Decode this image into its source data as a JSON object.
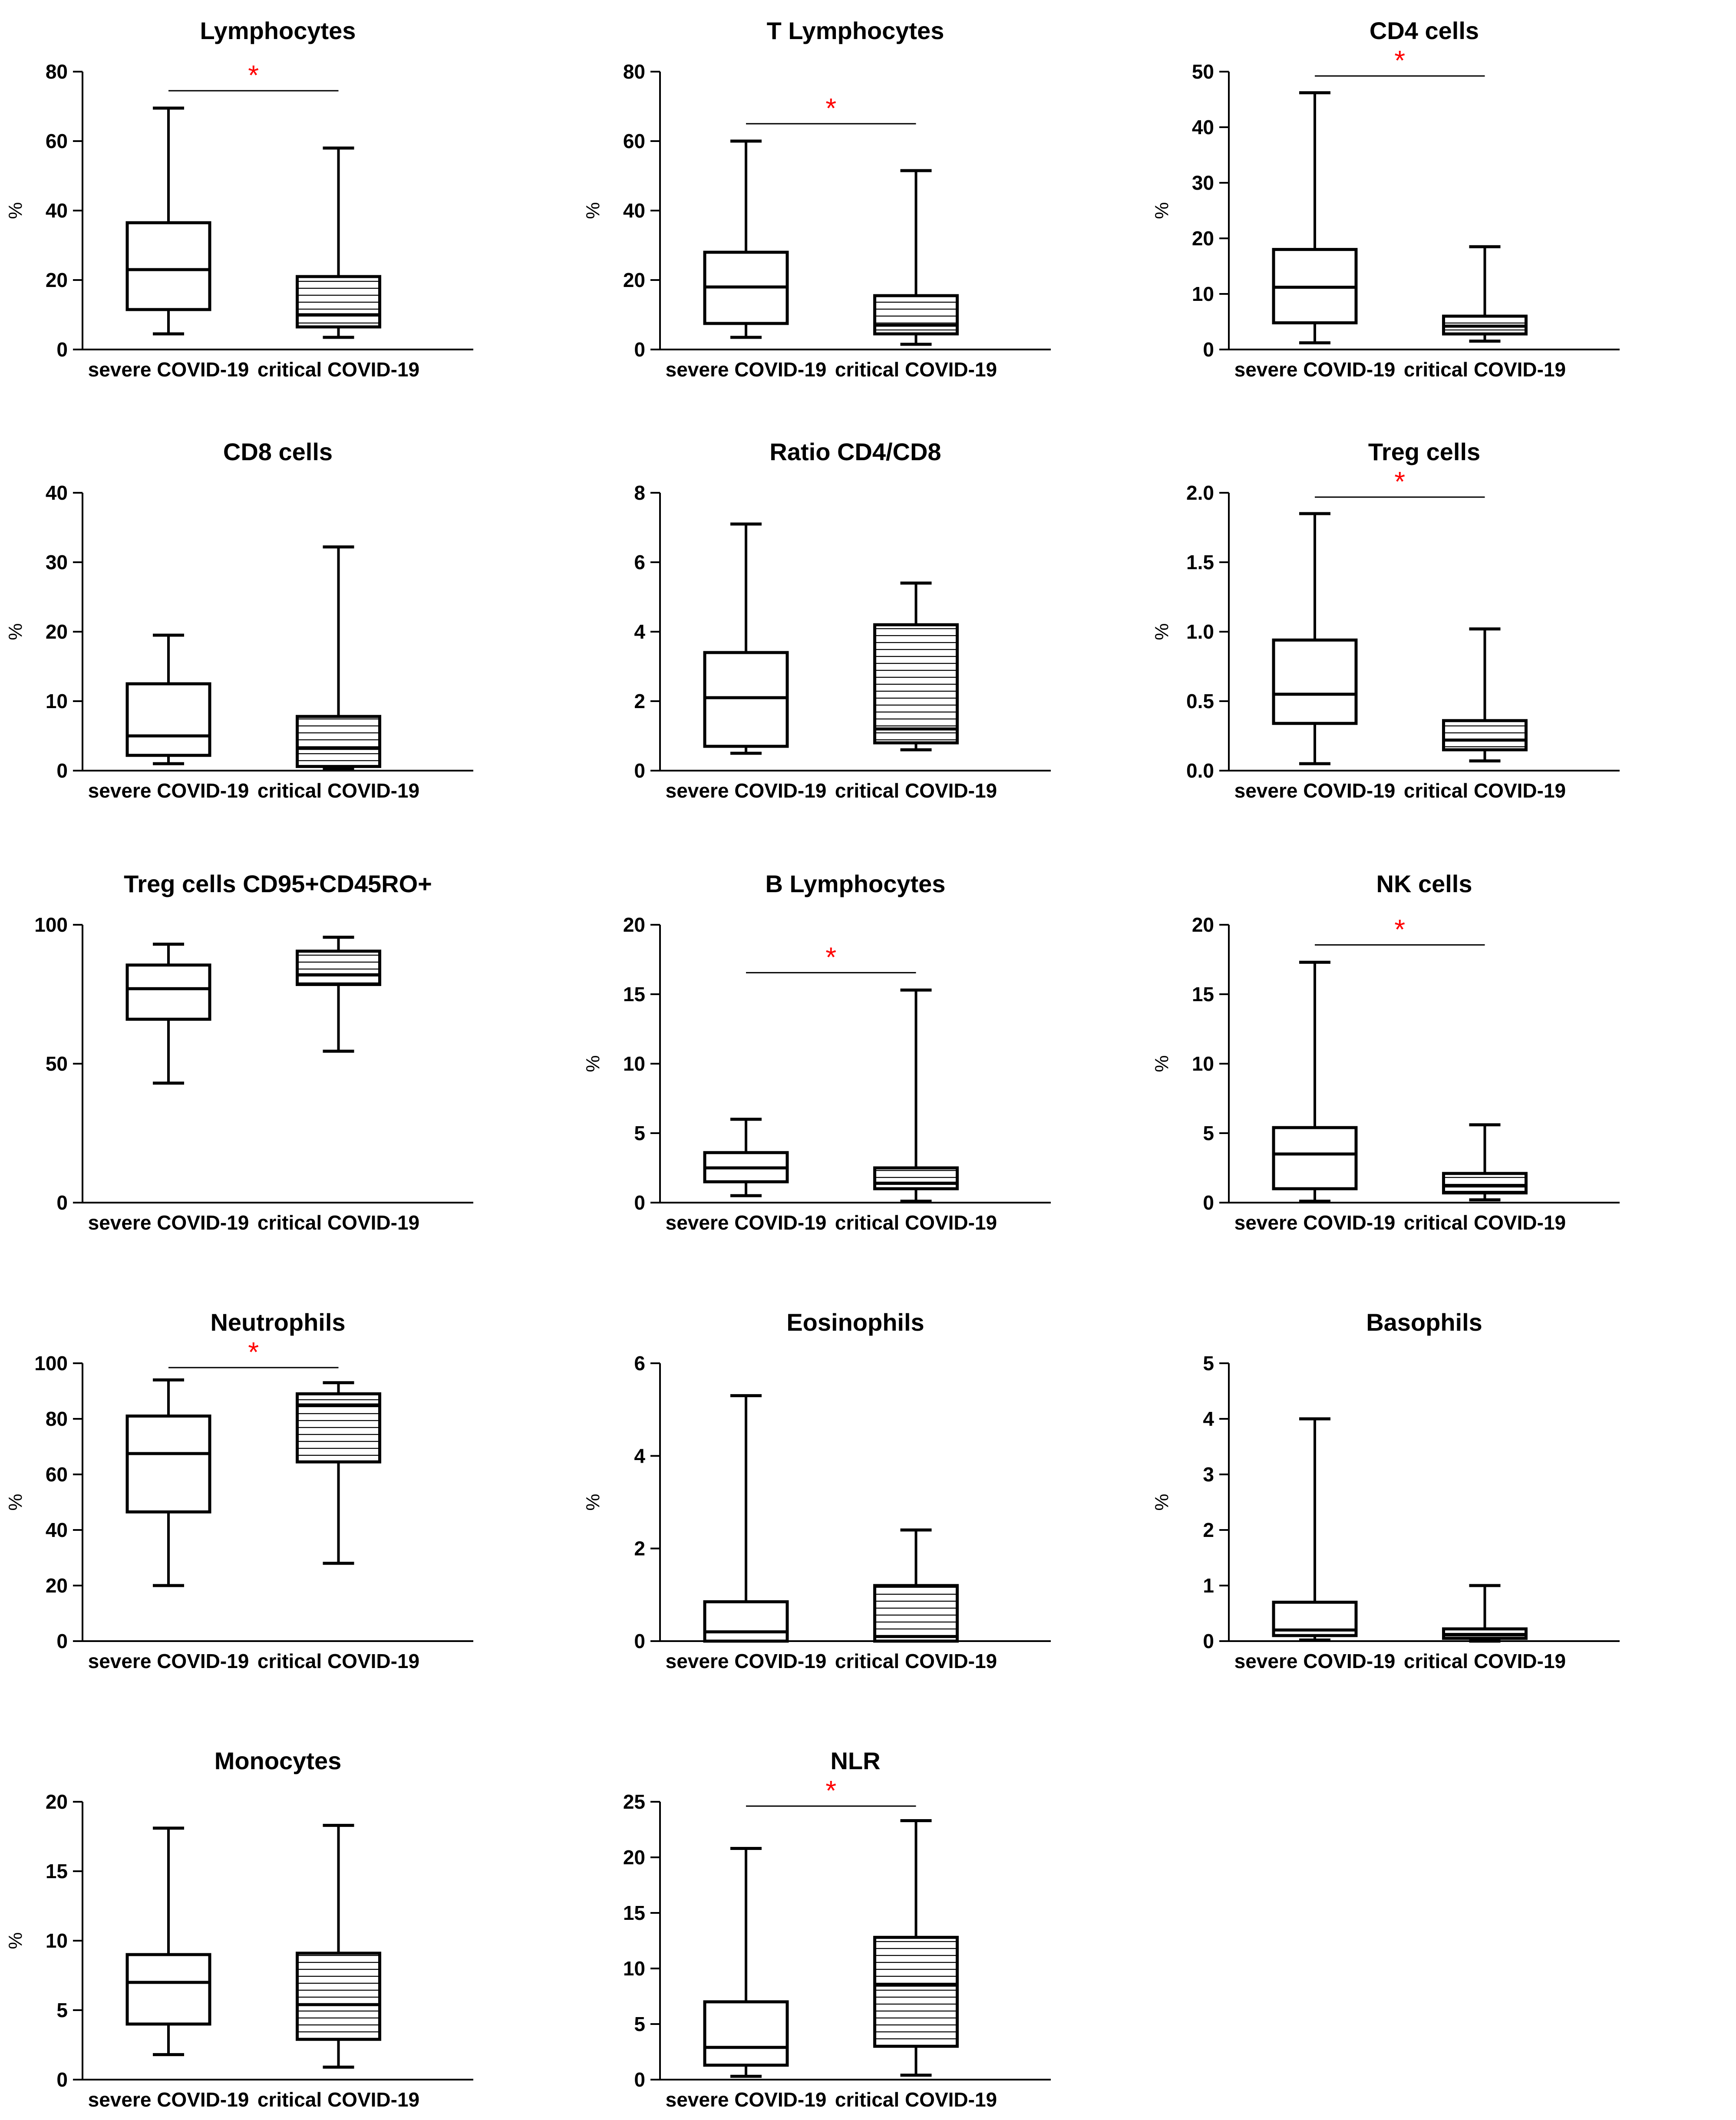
{
  "figure": {
    "categories": [
      "severe COVID-19",
      "critical COVID-19"
    ],
    "group_styles": [
      "open box",
      "horizontally hatched box"
    ],
    "significance_marker": "*",
    "colors": {
      "axis": "#000000",
      "box": "#000000",
      "significance": "#ff0000",
      "background": "#ffffff"
    }
  },
  "chart_data": [
    {
      "type": "box",
      "title": "Lymphocytes",
      "ylabel": "%",
      "ylim": [
        0,
        80
      ],
      "yticks": [
        "0",
        "20",
        "40",
        "60",
        "80"
      ],
      "significant": true,
      "series": [
        {
          "name": "severe COVID-19",
          "min": 4.5,
          "q1": 11.5,
          "median": 23,
          "q3": 36.5,
          "max": 69.5
        },
        {
          "name": "critical COVID-19",
          "min": 3.5,
          "q1": 6.5,
          "median": 10,
          "q3": 21,
          "max": 58
        }
      ]
    },
    {
      "type": "box",
      "title": "T Lymphocytes",
      "ylabel": "%",
      "ylim": [
        0,
        80
      ],
      "yticks": [
        "0",
        "20",
        "40",
        "60",
        "80"
      ],
      "significant": true,
      "series": [
        {
          "name": "severe COVID-19",
          "min": 3.5,
          "q1": 7.5,
          "median": 18,
          "q3": 28,
          "max": 60
        },
        {
          "name": "critical COVID-19",
          "min": 1.5,
          "q1": 4.5,
          "median": 7,
          "q3": 15.5,
          "max": 51.5
        }
      ]
    },
    {
      "type": "box",
      "title": "CD4 cells",
      "ylabel": "%",
      "ylim": [
        0,
        50
      ],
      "yticks": [
        "0",
        "10",
        "20",
        "30",
        "40",
        "50"
      ],
      "significant": true,
      "series": [
        {
          "name": "severe COVID-19",
          "min": 1.2,
          "q1": 4.8,
          "median": 11.2,
          "q3": 18,
          "max": 46.2
        },
        {
          "name": "critical COVID-19",
          "min": 1.5,
          "q1": 2.8,
          "median": 4.2,
          "q3": 6,
          "max": 18.5
        }
      ]
    },
    {
      "type": "box",
      "title": "CD8 cells",
      "ylabel": "%",
      "ylim": [
        0,
        40
      ],
      "yticks": [
        "0",
        "10",
        "20",
        "30",
        "40"
      ],
      "significant": false,
      "series": [
        {
          "name": "severe COVID-19",
          "min": 1,
          "q1": 2.2,
          "median": 5,
          "q3": 12.5,
          "max": 19.5
        },
        {
          "name": "critical COVID-19",
          "min": 0.2,
          "q1": 0.6,
          "median": 3.2,
          "q3": 7.8,
          "max": 32.2
        }
      ]
    },
    {
      "type": "box",
      "title": "Ratio CD4/CD8",
      "ylabel": "",
      "ylim": [
        0,
        8
      ],
      "yticks": [
        "0",
        "2",
        "4",
        "6",
        "8"
      ],
      "significant": false,
      "series": [
        {
          "name": "severe COVID-19",
          "min": 0.5,
          "q1": 0.7,
          "median": 2.1,
          "q3": 3.4,
          "max": 7.1
        },
        {
          "name": "critical COVID-19",
          "min": 0.6,
          "q1": 0.8,
          "median": 1.2,
          "q3": 4.2,
          "max": 5.4
        }
      ]
    },
    {
      "type": "box",
      "title": "Treg cells",
      "ylabel": "%",
      "ylim": [
        0,
        2
      ],
      "yticks": [
        "0.0",
        "0.5",
        "1.0",
        "1.5",
        "2.0"
      ],
      "significant": true,
      "series": [
        {
          "name": "severe COVID-19",
          "min": 0.05,
          "q1": 0.34,
          "median": 0.55,
          "q3": 0.94,
          "max": 1.85
        },
        {
          "name": "critical COVID-19",
          "min": 0.07,
          "q1": 0.15,
          "median": 0.22,
          "q3": 0.36,
          "max": 1.02
        }
      ]
    },
    {
      "type": "box",
      "title": "Treg cells CD95+CD45RO+",
      "ylabel": "",
      "ylim": [
        0,
        100
      ],
      "yticks": [
        "0",
        "50",
        "100"
      ],
      "significant": false,
      "series": [
        {
          "name": "severe COVID-19",
          "min": 43,
          "q1": 66,
          "median": 77,
          "q3": 85.5,
          "max": 93
        },
        {
          "name": "critical COVID-19",
          "min": 54.5,
          "q1": 78.5,
          "median": 82,
          "q3": 90.5,
          "max": 95.5
        }
      ]
    },
    {
      "type": "box",
      "title": "B Lymphocytes",
      "ylabel": "%",
      "ylim": [
        0,
        20
      ],
      "yticks": [
        "0",
        "5",
        "10",
        "15",
        "20"
      ],
      "significant": true,
      "series": [
        {
          "name": "severe COVID-19",
          "min": 0.5,
          "q1": 1.5,
          "median": 2.5,
          "q3": 3.6,
          "max": 6
        },
        {
          "name": "critical COVID-19",
          "min": 0.1,
          "q1": 1,
          "median": 1.4,
          "q3": 2.5,
          "max": 15.3
        }
      ]
    },
    {
      "type": "box",
      "title": "NK cells",
      "ylabel": "%",
      "ylim": [
        0,
        20
      ],
      "yticks": [
        "0",
        "5",
        "10",
        "15",
        "20"
      ],
      "significant": true,
      "series": [
        {
          "name": "severe COVID-19",
          "min": 0.1,
          "q1": 1,
          "median": 3.5,
          "q3": 5.4,
          "max": 17.3
        },
        {
          "name": "critical COVID-19",
          "min": 0.2,
          "q1": 0.7,
          "median": 1.2,
          "q3": 2.1,
          "max": 5.6
        }
      ]
    },
    {
      "type": "box",
      "title": "Neutrophils",
      "ylabel": "%",
      "ylim": [
        0,
        100
      ],
      "yticks": [
        "0",
        "20",
        "40",
        "60",
        "80",
        "100"
      ],
      "significant": true,
      "series": [
        {
          "name": "severe COVID-19",
          "min": 20,
          "q1": 46.5,
          "median": 67.5,
          "q3": 81,
          "max": 94
        },
        {
          "name": "critical COVID-19",
          "min": 28,
          "q1": 64.5,
          "median": 85,
          "q3": 89,
          "max": 93
        }
      ]
    },
    {
      "type": "box",
      "title": "Eosinophils",
      "ylabel": "%",
      "ylim": [
        0,
        6
      ],
      "yticks": [
        "0",
        "2",
        "4",
        "6"
      ],
      "significant": false,
      "series": [
        {
          "name": "severe COVID-19",
          "min": 0,
          "q1": 0,
          "median": 0.2,
          "q3": 0.85,
          "max": 5.3
        },
        {
          "name": "critical COVID-19",
          "min": 0,
          "q1": 0,
          "median": 0.1,
          "q3": 1.2,
          "max": 2.4
        }
      ]
    },
    {
      "type": "box",
      "title": "Basophils",
      "ylabel": "%",
      "ylim": [
        0,
        5
      ],
      "yticks": [
        "0",
        "1",
        "2",
        "3",
        "4",
        "5"
      ],
      "significant": false,
      "series": [
        {
          "name": "severe COVID-19",
          "min": 0.02,
          "q1": 0.1,
          "median": 0.2,
          "q3": 0.7,
          "max": 4
        },
        {
          "name": "critical COVID-19",
          "min": 0,
          "q1": 0.05,
          "median": 0.12,
          "q3": 0.22,
          "max": 1
        }
      ]
    },
    {
      "type": "box",
      "title": "Monocytes",
      "ylabel": "%",
      "ylim": [
        0,
        20
      ],
      "yticks": [
        "0",
        "5",
        "10",
        "15",
        "20"
      ],
      "significant": false,
      "series": [
        {
          "name": "severe COVID-19",
          "min": 1.8,
          "q1": 4,
          "median": 7,
          "q3": 9,
          "max": 18.1
        },
        {
          "name": "critical COVID-19",
          "min": 0.9,
          "q1": 2.9,
          "median": 5.4,
          "q3": 9.1,
          "max": 18.3
        }
      ]
    },
    {
      "type": "box",
      "title": "NLR",
      "ylabel": "",
      "ylim": [
        0,
        25
      ],
      "yticks": [
        "0",
        "5",
        "10",
        "15",
        "20",
        "25"
      ],
      "significant": true,
      "series": [
        {
          "name": "severe COVID-19",
          "min": 0.3,
          "q1": 1.3,
          "median": 2.9,
          "q3": 7,
          "max": 20.8
        },
        {
          "name": "critical COVID-19",
          "min": 0.4,
          "q1": 3,
          "median": 8.5,
          "q3": 12.8,
          "max": 23.3
        }
      ]
    }
  ]
}
